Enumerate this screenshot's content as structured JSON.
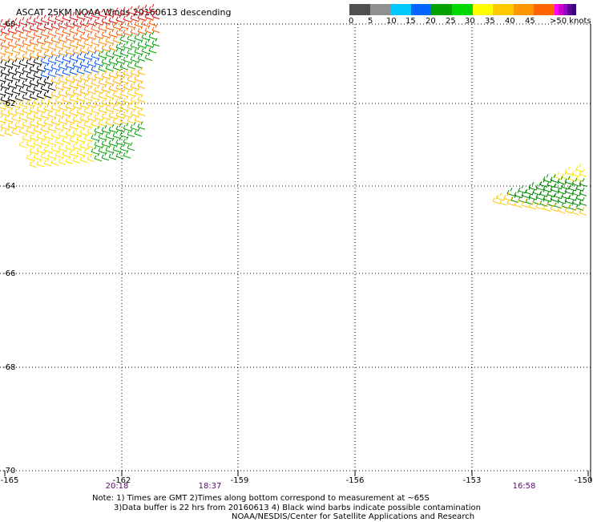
{
  "title": "ASCAT 25KM NOAA Winds 20160613 descending",
  "colorbar": {
    "colors": [
      "#505050",
      "#909090",
      "#00c8ff",
      "#0064ff",
      "#00a000",
      "#00d800",
      "#ffff00",
      "#ffc800",
      "#ff9600",
      "#ff6400",
      "#ff0000",
      "#a00000",
      "#8b4513",
      "#d2691e",
      "#ff00ff",
      "#c800c8",
      "#9600c8",
      "#5a0096",
      "#3c0078"
    ],
    "labels": [
      "0",
      "5",
      "10",
      "15",
      "20",
      "25",
      "30",
      "35",
      "40",
      "45",
      ">50 knots"
    ]
  },
  "map": {
    "lat_labels": [
      "-60",
      "-62",
      "-64",
      "-66",
      "-68",
      "-70"
    ],
    "lon_labels": [
      "-165",
      "-162",
      "-159",
      "-156",
      "-153",
      "-150"
    ],
    "times": [
      "20:18",
      "18:37",
      "16:58"
    ],
    "swaths": [
      {
        "region": "west",
        "lon_range": [
          -165,
          -160.5
        ],
        "lat_range": [
          -60,
          -64
        ]
      },
      {
        "region": "east",
        "lon_range": [
          -152.5,
          -150
        ],
        "lat_range": [
          -63,
          -64.5
        ]
      }
    ]
  },
  "notes": [
    "Note: 1) Times are GMT 2)Times along bottom correspond to measurement at ~65S",
    "3)Data buffer is 22 hrs from 20160613 4) Black wind barbs indicate possible contamination",
    "NOAA/NESDIS/Center for Satellite Applications and Research"
  ]
}
